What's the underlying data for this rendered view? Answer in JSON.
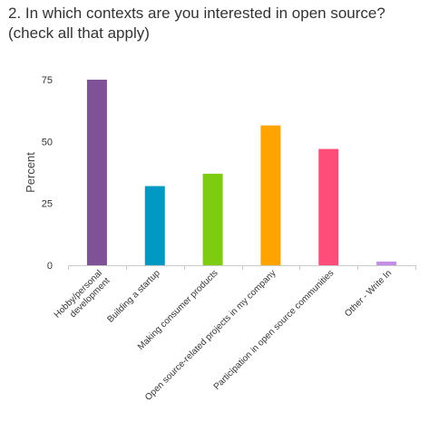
{
  "question": {
    "line1": "2. In which contexts are you interested in open source?",
    "line2": "(check all that apply)"
  },
  "chart_data": {
    "type": "bar",
    "ylabel": "Percent",
    "xlabel": "",
    "ylim": [
      0,
      75
    ],
    "yticks": [
      0,
      25,
      50,
      75
    ],
    "grid": false,
    "categories": [
      [
        "Hobby/personal",
        "development"
      ],
      [
        "Building a startup"
      ],
      [
        "Making consumer products"
      ],
      [
        "Open source-related projects in my company"
      ],
      [
        "Participation in open source communities"
      ],
      [
        "Other - Write In"
      ]
    ],
    "values": [
      75,
      32,
      37,
      56.5,
      47,
      1.5
    ],
    "colors": [
      "#7f5196",
      "#0099c4",
      "#7ecc0f",
      "#ffa300",
      "#ff4d7a",
      "#c48ee6"
    ]
  }
}
